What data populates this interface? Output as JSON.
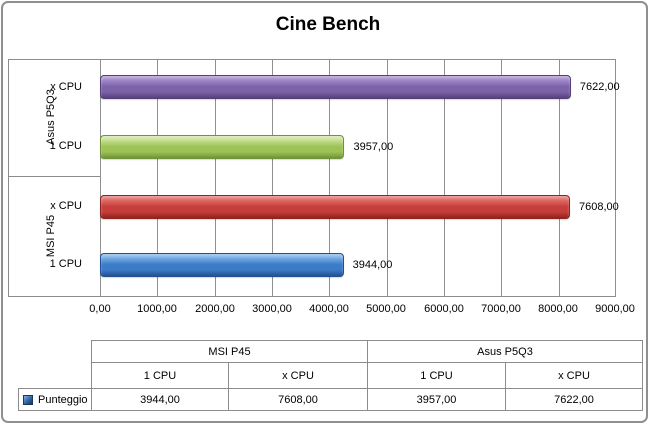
{
  "title": "Cine Bench",
  "colors": {
    "frame_border": "#8f8f8f",
    "grid_line": "#909090",
    "axis_line": "#8c8c8c",
    "table_border": "#8c8c8c",
    "text": "#000000",
    "legend_key": {
      "light": "#7FB3E8",
      "base": "#31649B",
      "dark": "#17375E"
    }
  },
  "chart_data": {
    "type": "bar",
    "orientation": "horizontal",
    "title": "Cine Bench",
    "series_name": "Punteggio",
    "xlim": [
      0,
      9000
    ],
    "x_tick_step": 1000,
    "x_ticks": [
      "0,00",
      "1000,00",
      "2000,00",
      "3000,00",
      "4000,00",
      "5000,00",
      "6000,00",
      "7000,00",
      "8000,00",
      "9000,00"
    ],
    "grid": "vertical-only",
    "legend_position": "data-table",
    "group_labels": [
      "Asus P5Q3",
      "MSI P45"
    ],
    "bars": [
      {
        "group": "Asus P5Q3",
        "category": "x CPU",
        "value": 7622,
        "label": "7622,00",
        "color_light": "#A98FD0",
        "color": "#7C62A8",
        "color_dark": "#55417A"
      },
      {
        "group": "Asus P5Q3",
        "category": "1 CPU",
        "value": 3957,
        "label": "3957,00",
        "color_light": "#CDE49E",
        "color": "#9DC255",
        "color_dark": "#71923B"
      },
      {
        "group": "MSI P45",
        "category": "x CPU",
        "value": 7608,
        "label": "7608,00",
        "color_light": "#E2736E",
        "color": "#C63E3A",
        "color_dark": "#8F2421"
      },
      {
        "group": "MSI P45",
        "category": "1 CPU",
        "value": 3944,
        "label": "3944,00",
        "color_light": "#7FB3E8",
        "color": "#3C7BC7",
        "color_dark": "#235092"
      }
    ]
  },
  "data_table": {
    "legend_label": "Punteggio",
    "group_headers": [
      "MSI P45",
      "Asus P5Q3"
    ],
    "sub_headers": [
      "1 CPU",
      "x CPU",
      "1 CPU",
      "x CPU"
    ],
    "values": [
      "3944,00",
      "7608,00",
      "3957,00",
      "7622,00"
    ]
  }
}
